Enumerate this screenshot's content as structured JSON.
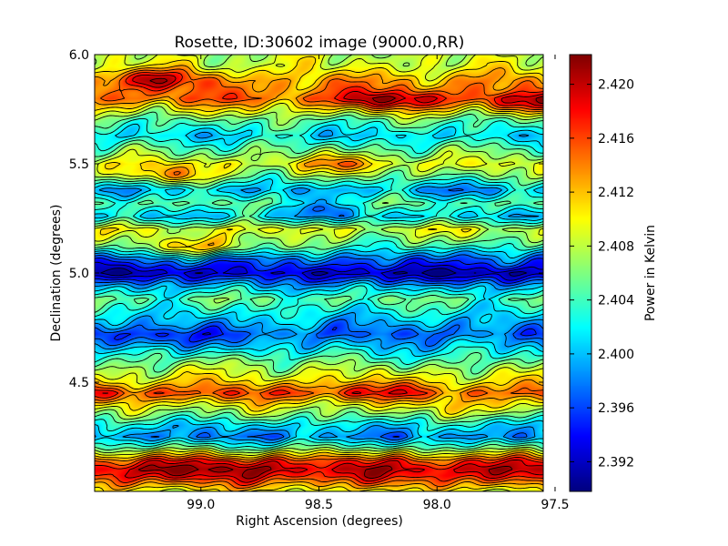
{
  "chart_data": {
    "type": "heatmap",
    "title": "Rosette, ID:30602 image (9000.0,RR)",
    "xlabel": "Right Ascension (degrees)",
    "ylabel": "Declination (degrees)",
    "colorbar_label": "Power in Kelvin",
    "x_range": [
      99.45,
      97.55
    ],
    "y_range": [
      4.0,
      6.0
    ],
    "x_ticks": [
      {
        "value": 99.0,
        "label": "99.0"
      },
      {
        "value": 98.5,
        "label": "98.5"
      },
      {
        "value": 98.0,
        "label": "98.0"
      },
      {
        "value": 97.5,
        "label": "97.5"
      }
    ],
    "y_ticks": [
      {
        "value": 4.5,
        "label": "4.5"
      },
      {
        "value": 5.0,
        "label": "5.0"
      },
      {
        "value": 5.5,
        "label": "5.5"
      },
      {
        "value": 6.0,
        "label": "6.0"
      }
    ],
    "colorbar_range": [
      2.3898,
      2.4222
    ],
    "colorbar_ticks": [
      {
        "value": 2.392,
        "label": "2.392"
      },
      {
        "value": 2.396,
        "label": "2.396"
      },
      {
        "value": 2.4,
        "label": "2.400"
      },
      {
        "value": 2.404,
        "label": "2.404"
      },
      {
        "value": 2.408,
        "label": "2.408"
      },
      {
        "value": 2.412,
        "label": "2.412"
      },
      {
        "value": 2.416,
        "label": "2.416"
      },
      {
        "value": 2.42,
        "label": "2.420"
      }
    ],
    "colormap": "jet",
    "contours": true,
    "dec_profile": [
      {
        "dec": 4.0,
        "value": 2.41
      },
      {
        "dec": 4.07,
        "value": 2.418
      },
      {
        "dec": 4.1,
        "value": 2.4195
      },
      {
        "dec": 4.14,
        "value": 2.416
      },
      {
        "dec": 4.2,
        "value": 2.405
      },
      {
        "dec": 4.25,
        "value": 2.398
      },
      {
        "dec": 4.3,
        "value": 2.401
      },
      {
        "dec": 4.35,
        "value": 2.406
      },
      {
        "dec": 4.4,
        "value": 2.41
      },
      {
        "dec": 4.45,
        "value": 2.415
      },
      {
        "dec": 4.5,
        "value": 2.411
      },
      {
        "dec": 4.55,
        "value": 2.408
      },
      {
        "dec": 4.6,
        "value": 2.4045
      },
      {
        "dec": 4.67,
        "value": 2.4
      },
      {
        "dec": 4.72,
        "value": 2.397
      },
      {
        "dec": 4.8,
        "value": 2.401
      },
      {
        "dec": 4.88,
        "value": 2.405
      },
      {
        "dec": 4.94,
        "value": 2.4
      },
      {
        "dec": 5.0,
        "value": 2.3925
      },
      {
        "dec": 5.06,
        "value": 2.397
      },
      {
        "dec": 5.12,
        "value": 2.404
      },
      {
        "dec": 5.2,
        "value": 2.409
      },
      {
        "dec": 5.26,
        "value": 2.401
      },
      {
        "dec": 5.32,
        "value": 2.405
      },
      {
        "dec": 5.38,
        "value": 2.4
      },
      {
        "dec": 5.45,
        "value": 2.406
      },
      {
        "dec": 5.5,
        "value": 2.409
      },
      {
        "dec": 5.57,
        "value": 2.405
      },
      {
        "dec": 5.63,
        "value": 2.401
      },
      {
        "dec": 5.7,
        "value": 2.405
      },
      {
        "dec": 5.8,
        "value": 2.415
      },
      {
        "dec": 5.88,
        "value": 2.413
      },
      {
        "dec": 5.95,
        "value": 2.409
      },
      {
        "dec": 6.0,
        "value": 2.408
      }
    ],
    "features": [
      {
        "ra": 99.1,
        "dec": 4.1,
        "value": 2.4215
      },
      {
        "ra": 98.75,
        "dec": 4.11,
        "value": 2.42
      },
      {
        "ra": 97.75,
        "dec": 4.1,
        "value": 2.4205
      },
      {
        "ra": 98.2,
        "dec": 4.12,
        "value": 2.418
      },
      {
        "ra": 99.2,
        "dec": 5.0,
        "value": 2.391
      },
      {
        "ra": 98.35,
        "dec": 4.99,
        "value": 2.3915
      },
      {
        "ra": 97.75,
        "dec": 4.99,
        "value": 2.3915
      },
      {
        "ra": 98.62,
        "dec": 5.0,
        "value": 2.394
      },
      {
        "ra": 98.2,
        "dec": 5.79,
        "value": 2.4205
      },
      {
        "ra": 99.2,
        "dec": 5.89,
        "value": 2.419
      },
      {
        "ra": 97.6,
        "dec": 5.78,
        "value": 2.4195
      },
      {
        "ra": 99.4,
        "dec": 4.44,
        "value": 2.417
      },
      {
        "ra": 98.3,
        "dec": 4.46,
        "value": 2.4175
      },
      {
        "ra": 98.8,
        "dec": 4.45,
        "value": 2.416
      },
      {
        "ra": 99.2,
        "dec": 4.7,
        "value": 2.3945
      },
      {
        "ra": 98.5,
        "dec": 5.3,
        "value": 2.3995
      },
      {
        "ra": 97.9,
        "dec": 5.38,
        "value": 2.3985
      },
      {
        "ra": 97.8,
        "dec": 5.1,
        "value": 2.4
      },
      {
        "ra": 99.15,
        "dec": 5.45,
        "value": 2.4125
      },
      {
        "ra": 98.4,
        "dec": 5.5,
        "value": 2.4135
      },
      {
        "ra": 99.0,
        "dec": 5.12,
        "value": 2.412
      },
      {
        "ra": 98.1,
        "dec": 4.28,
        "value": 2.4005
      },
      {
        "ra": 98.8,
        "dec": 4.6,
        "value": 2.4065
      },
      {
        "ra": 97.8,
        "dec": 4.38,
        "value": 2.4105
      }
    ]
  }
}
